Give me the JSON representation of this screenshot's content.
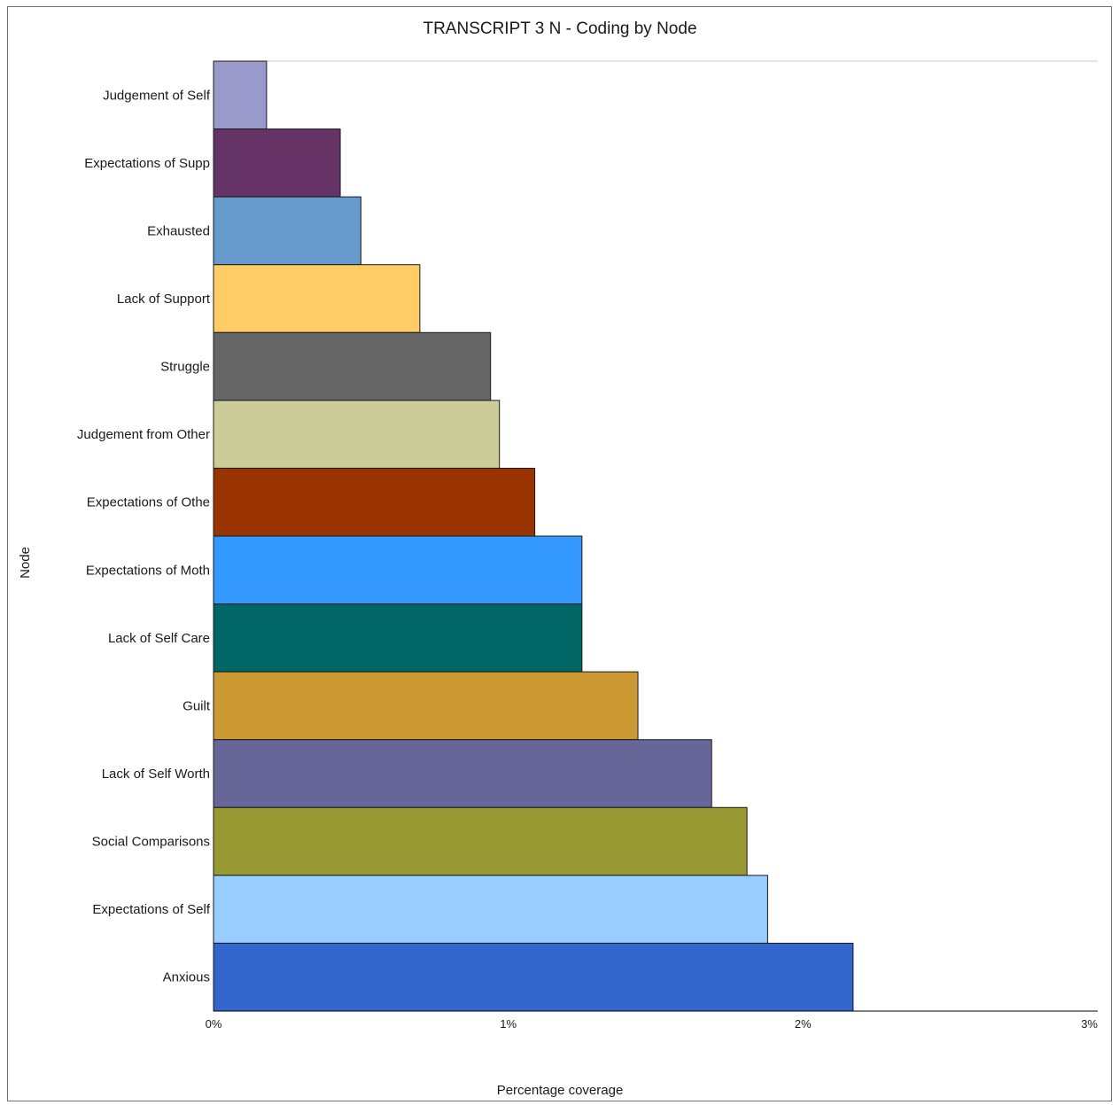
{
  "chart_data": {
    "type": "bar",
    "orientation": "horizontal",
    "title": "TRANSCRIPT 3 N - Coding by Node",
    "xlabel": "Percentage coverage",
    "ylabel": "Node",
    "xlim": [
      0,
      3
    ],
    "x_ticks": [
      "0%",
      "1%",
      "2%",
      "3%"
    ],
    "grid": false,
    "categories": [
      "Judgement of Self",
      "Expectations of Supp",
      "Exhausted",
      "Lack of Support",
      "Struggle",
      "Judgement from Other",
      "Expectations of Othe",
      "Expectations of Moth",
      "Lack of Self Care",
      "Guilt",
      "Lack of Self Worth",
      "Social Comparisons",
      "Expectations of Self",
      "Anxious"
    ],
    "values": [
      0.18,
      0.43,
      0.5,
      0.7,
      0.94,
      0.97,
      1.09,
      1.25,
      1.25,
      1.44,
      1.69,
      1.81,
      1.88,
      2.17
    ],
    "colors": [
      "#9999cc",
      "#663366",
      "#6699cc",
      "#ffcc66",
      "#666666",
      "#cccc99",
      "#993300",
      "#3399ff",
      "#006666",
      "#cc9933",
      "#666699",
      "#999933",
      "#99ccff",
      "#3366cc"
    ]
  }
}
